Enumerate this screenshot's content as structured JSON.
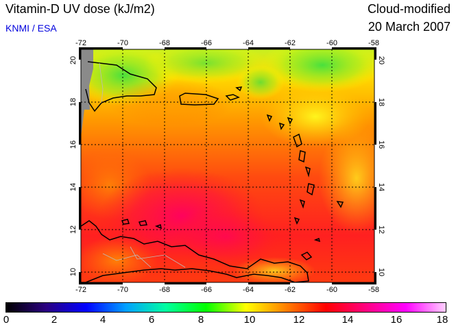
{
  "header": {
    "title": "Vitamin-D UV dose (kJ/m2)",
    "credit": "KNMI / ESA",
    "product": "Cloud-modified",
    "date": "20 March 2007"
  },
  "colors": {
    "credit": "#0000dd",
    "land_nodata": "#8a8a8a"
  },
  "map": {
    "lon_range": [
      -72,
      -58
    ],
    "lat_range": [
      9.5,
      20.5
    ],
    "lon_ticks": [
      "-72",
      "-70",
      "-68",
      "-66",
      "-64",
      "-62",
      "-60",
      "-58"
    ],
    "lat_ticks": [
      "10",
      "12",
      "14",
      "16",
      "18",
      "20"
    ],
    "grid_lons": [
      -70,
      -68,
      -66,
      -64,
      -62,
      -60
    ],
    "grid_lats": [
      10,
      12,
      14,
      16,
      18
    ]
  },
  "colorbar": {
    "labels": [
      "0",
      "2",
      "4",
      "6",
      "8",
      "10",
      "12",
      "14",
      "16",
      "18"
    ],
    "stops": [
      "#000000",
      "#2a0080",
      "#0000ff",
      "#00a0ff",
      "#00ffa0",
      "#00ff00",
      "#ffff00",
      "#ff8000",
      "#ff0000",
      "#ff0080",
      "#ff00ff",
      "#ffd0ff"
    ]
  }
}
